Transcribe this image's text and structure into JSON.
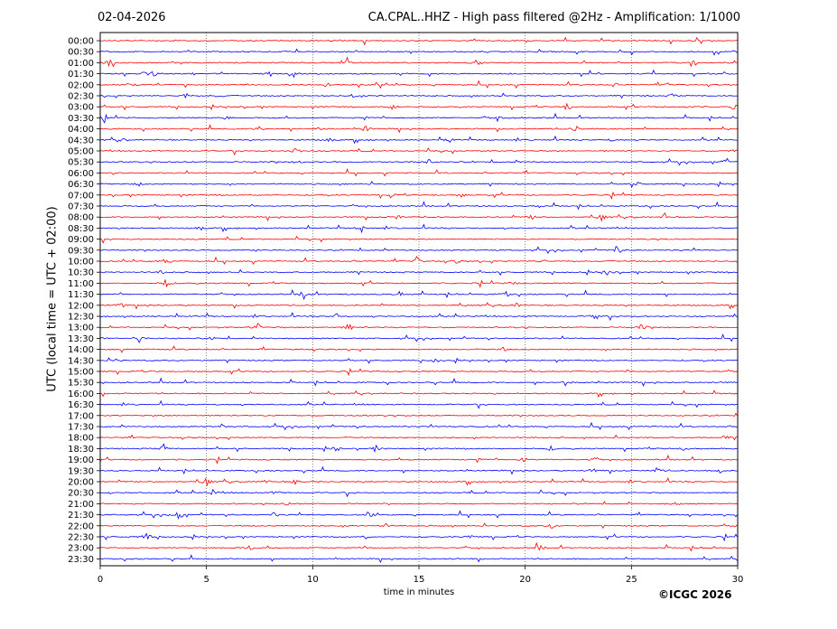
{
  "header": {
    "date": "02-04-2026",
    "title": "CA.CPAL..HHZ - High pass filtered @2Hz - Amplification: 1/1000"
  },
  "footer": {
    "copyright": "©ICGC 2026"
  },
  "chart_data": {
    "type": "line",
    "title": "CA.CPAL..HHZ - High pass filtered @2Hz - Amplification: 1/1000",
    "xlabel": "time in minutes",
    "ylabel": "UTC (local time = UTC + 02:00)",
    "xlim": [
      0,
      30
    ],
    "x_ticks": [
      0,
      5,
      10,
      15,
      20,
      25,
      30
    ],
    "grid": "vertical dotted at each x tick",
    "colors": {
      "even_trace": "#ff0000",
      "odd_trace": "#0000ff"
    },
    "traces": [
      {
        "label": "00:00",
        "bursts": []
      },
      {
        "label": "00:30",
        "bursts": [
          [
            30,
            1.0
          ]
        ]
      },
      {
        "label": "01:00",
        "bursts": [
          [
            0.4,
            0.5
          ],
          [
            11.6,
            0.8
          ],
          [
            17.8,
            0.3
          ],
          [
            28,
            0.3
          ]
        ]
      },
      {
        "label": "01:30",
        "bursts": [
          [
            2.1,
            0.4
          ],
          [
            2.5,
            0.4
          ],
          [
            8,
            0.3
          ],
          [
            9.1,
            0.4
          ],
          [
            17.8,
            0.3
          ]
        ]
      },
      {
        "label": "02:00",
        "bursts": [
          [
            1.4,
            0.3
          ],
          [
            10.7,
            0.4
          ],
          [
            24.2,
            0.3
          ],
          [
            26.8,
            0.4
          ]
        ]
      },
      {
        "label": "02:30",
        "bursts": [
          [
            4,
            0.4
          ],
          [
            5.6,
            0.4
          ],
          [
            11.9,
            0.3
          ],
          [
            26.9,
            0.3
          ]
        ]
      },
      {
        "label": "03:00",
        "bursts": [
          [
            13.8,
            0.6
          ],
          [
            22,
            0.7
          ],
          [
            27.8,
            0.4
          ],
          [
            29.8,
            0.4
          ]
        ]
      },
      {
        "label": "03:30",
        "bursts": [
          [
            0.1,
            0.4
          ],
          [
            5.9,
            0.4
          ],
          [
            12.5,
            0.4
          ],
          [
            18.7,
            0.6
          ]
        ]
      },
      {
        "label": "04:00",
        "bursts": [
          [
            7.5,
            0.4
          ],
          [
            10.2,
            0.3
          ],
          [
            12.5,
            0.5
          ],
          [
            22.4,
            0.6
          ]
        ]
      },
      {
        "label": "04:30",
        "bursts": [
          [
            1,
            0.3
          ],
          [
            10.8,
            0.3
          ],
          [
            16.4,
            0.4
          ],
          [
            24.1,
            0.3
          ]
        ]
      },
      {
        "label": "05:00",
        "bursts": [
          [
            9.2,
            0.6
          ],
          [
            29.8,
            0.3
          ]
        ]
      },
      {
        "label": "05:30",
        "bursts": [
          [
            9.3,
            0.4
          ],
          [
            15.5,
            0.4
          ],
          [
            29.4,
            0.6
          ]
        ]
      },
      {
        "label": "06:00",
        "bursts": []
      },
      {
        "label": "06:30",
        "bursts": [
          [
            1.8,
            0.3
          ],
          [
            25.3,
            0.3
          ]
        ]
      },
      {
        "label": "07:00",
        "bursts": [
          [
            13.7,
            0.4
          ],
          [
            17,
            0.3
          ]
        ]
      },
      {
        "label": "07:30",
        "bursts": [
          [
            20.6,
            0.3
          ]
        ]
      },
      {
        "label": "08:00",
        "bursts": [
          [
            14,
            0.4
          ],
          [
            20.3,
            0.5
          ],
          [
            23.6,
            0.6
          ],
          [
            26.6,
            0.5
          ]
        ]
      },
      {
        "label": "08:30",
        "bursts": [
          [
            4.7,
            0.3
          ],
          [
            12.3,
            0.6
          ]
        ]
      },
      {
        "label": "09:00",
        "bursts": []
      },
      {
        "label": "09:30",
        "bursts": [
          [
            7.3,
            0.3
          ],
          [
            24.3,
            0.6
          ]
        ]
      },
      {
        "label": "10:00",
        "bursts": [
          [
            3,
            0.5
          ],
          [
            14.9,
            0.6
          ],
          [
            16.8,
            0.4
          ],
          [
            20.8,
            0.4
          ]
        ]
      },
      {
        "label": "10:30",
        "bursts": [
          [
            2.9,
            0.4
          ],
          [
            23.9,
            0.6
          ]
        ]
      },
      {
        "label": "11:00",
        "bursts": [
          [
            3.1,
            0.8
          ],
          [
            19.5,
            0.3
          ]
        ]
      },
      {
        "label": "11:30",
        "bursts": [
          [
            9.6,
            0.7
          ],
          [
            14.1,
            0.4
          ],
          [
            19.1,
            0.4
          ]
        ]
      },
      {
        "label": "12:00",
        "bursts": [
          [
            1,
            0.5
          ],
          [
            19.6,
            0.4
          ]
        ]
      },
      {
        "label": "12:30",
        "bursts": [
          [
            11.1,
            0.6
          ],
          [
            23.3,
            0.6
          ]
        ]
      },
      {
        "label": "13:00",
        "bursts": [
          [
            7.4,
            0.6
          ],
          [
            11.7,
            0.6
          ],
          [
            25.5,
            0.6
          ]
        ]
      },
      {
        "label": "13:30",
        "bursts": [
          [
            0.1,
            0.4
          ],
          [
            1.8,
            0.7
          ],
          [
            5.3,
            0.3
          ]
        ]
      },
      {
        "label": "14:00",
        "bursts": [
          [
            19,
            0.3
          ]
        ]
      },
      {
        "label": "14:30",
        "bursts": [
          [
            0.8,
            0.3
          ],
          [
            15.8,
            0.3
          ]
        ]
      },
      {
        "label": "15:00",
        "bursts": []
      },
      {
        "label": "15:30",
        "bursts": [
          [
            21.9,
            0.4
          ]
        ]
      },
      {
        "label": "16:00",
        "bursts": []
      },
      {
        "label": "16:30",
        "bursts": []
      },
      {
        "label": "17:00",
        "bursts": []
      },
      {
        "label": "17:30",
        "bursts": [
          [
            5.7,
            0.3
          ]
        ]
      },
      {
        "label": "18:00",
        "bursts": [
          [
            29.4,
            0.3
          ]
        ]
      },
      {
        "label": "18:30",
        "bursts": [
          [
            3,
            0.6
          ],
          [
            11.1,
            0.4
          ],
          [
            13,
            0.4
          ],
          [
            21.2,
            0.3
          ],
          [
            27.5,
            0.4
          ]
        ]
      },
      {
        "label": "19:00",
        "bursts": [
          [
            17.8,
            0.5
          ],
          [
            19.9,
            0.4
          ],
          [
            23.2,
            0.3
          ]
        ]
      },
      {
        "label": "19:30",
        "bursts": [
          [
            23.2,
            0.3
          ],
          [
            26.2,
            0.4
          ],
          [
            29.1,
            0.5
          ]
        ]
      },
      {
        "label": "20:00",
        "bursts": [
          [
            5,
            0.8
          ],
          [
            7.7,
            0.4
          ],
          [
            9.2,
            0.4
          ]
        ]
      },
      {
        "label": "20:30",
        "bursts": [
          [
            5.3,
            0.4
          ],
          [
            8.3,
            0.4
          ]
        ]
      },
      {
        "label": "21:00",
        "bursts": [
          [
            8.8,
            0.3
          ],
          [
            27.1,
            0.3
          ]
        ]
      },
      {
        "label": "21:30",
        "bursts": [
          [
            3.7,
            0.8
          ],
          [
            8.2,
            0.4
          ],
          [
            12.7,
            0.4
          ]
        ]
      },
      {
        "label": "22:00",
        "bursts": [
          [
            13.4,
            0.4
          ],
          [
            21.2,
            0.5
          ],
          [
            29.9,
            0.3
          ]
        ]
      },
      {
        "label": "22:30",
        "bursts": [
          [
            2.2,
            0.6
          ],
          [
            12.5,
            0.3
          ],
          [
            17.4,
            0.3
          ]
        ]
      },
      {
        "label": "23:00",
        "bursts": [
          [
            7,
            0.5
          ],
          [
            20.7,
            0.4
          ]
        ]
      },
      {
        "label": "23:30",
        "bursts": []
      }
    ]
  }
}
